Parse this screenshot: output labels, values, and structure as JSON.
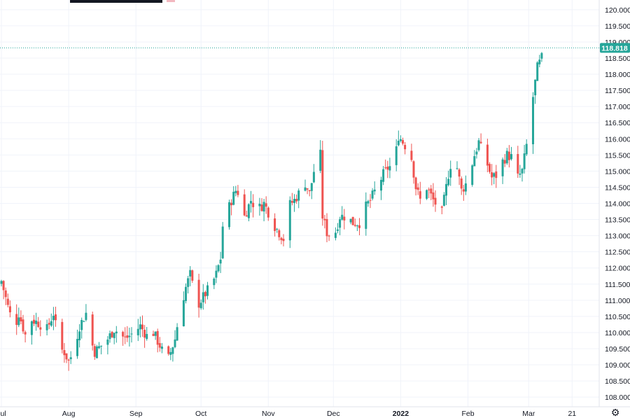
{
  "chart_data": {
    "type": "candlestick",
    "y_axis": {
      "min": 107.7,
      "max": 120.3,
      "ticks": [
        "108.000",
        "108.500",
        "109.000",
        "109.500",
        "110.000",
        "110.500",
        "111.000",
        "111.500",
        "112.000",
        "112.500",
        "113.000",
        "113.500",
        "114.000",
        "114.500",
        "115.000",
        "115.500",
        "116.000",
        "116.500",
        "117.000",
        "117.500",
        "118.000",
        "118.500",
        "119.000",
        "119.500",
        "120.000"
      ],
      "position": "right"
    },
    "x_axis": {
      "labels": [
        {
          "text": "Jul",
          "day": 0
        },
        {
          "text": "Aug",
          "day": 31
        },
        {
          "text": "Sep",
          "day": 62
        },
        {
          "text": "Oct",
          "day": 92
        },
        {
          "text": "Nov",
          "day": 123
        },
        {
          "text": "Dec",
          "day": 153
        },
        {
          "text": "2022",
          "day": 184,
          "bold": true
        },
        {
          "text": "Feb",
          "day": 215
        },
        {
          "text": "Mar",
          "day": 243
        },
        {
          "text": "21",
          "day": 263
        }
      ]
    },
    "last_price": "118.818",
    "last_value": 118.818,
    "colors": {
      "up": "#26a69a",
      "down": "#ef5350",
      "grid": "#f0f3fa",
      "price_label": "#26a69a"
    },
    "grid": true,
    "keyframes": [
      [
        0,
        111.6
      ],
      [
        3,
        110.8
      ],
      [
        6,
        110.1
      ],
      [
        8,
        110.6
      ],
      [
        12,
        109.7
      ],
      [
        14,
        110.4
      ],
      [
        17,
        110.3
      ],
      [
        21,
        110.1
      ],
      [
        24,
        110.6
      ],
      [
        27,
        109.5
      ],
      [
        29,
        109.4
      ],
      [
        31,
        109.1
      ],
      [
        33,
        109.4
      ],
      [
        36,
        110.2
      ],
      [
        39,
        110.6
      ],
      [
        41,
        109.8
      ],
      [
        43,
        109.4
      ],
      [
        46,
        109.6
      ],
      [
        49,
        109.8
      ],
      [
        52,
        110.1
      ],
      [
        54,
        110.0
      ],
      [
        57,
        109.8
      ],
      [
        61,
        110.0
      ],
      [
        64,
        110.2
      ],
      [
        67,
        109.9
      ],
      [
        70,
        110.0
      ],
      [
        73,
        109.6
      ],
      [
        75,
        109.3
      ],
      [
        77,
        109.2
      ],
      [
        80,
        109.8
      ],
      [
        82,
        110.6
      ],
      [
        85,
        111.4
      ],
      [
        87,
        111.8
      ],
      [
        89,
        111.2
      ],
      [
        91,
        110.9
      ],
      [
        94,
        111.2
      ],
      [
        97,
        111.5
      ],
      [
        99,
        111.8
      ],
      [
        101,
        112.3
      ],
      [
        102,
        113.3
      ],
      [
        104,
        113.7
      ],
      [
        106,
        114.1
      ],
      [
        108,
        114.4
      ],
      [
        110,
        114.3
      ],
      [
        112,
        113.6
      ],
      [
        115,
        114.1
      ],
      [
        118,
        113.8
      ],
      [
        121,
        114.0
      ],
      [
        124,
        113.6
      ],
      [
        126,
        113.3
      ],
      [
        128,
        113.1
      ],
      [
        130,
        112.9
      ],
      [
        132,
        113.9
      ],
      [
        135,
        114.1
      ],
      [
        137,
        114.3
      ],
      [
        139,
        114.8
      ],
      [
        142,
        114.3
      ],
      [
        144,
        115.0
      ],
      [
        146,
        115.5
      ],
      [
        147,
        115.5
      ],
      [
        148,
        113.6
      ],
      [
        150,
        113.1
      ],
      [
        153,
        112.9
      ],
      [
        156,
        113.6
      ],
      [
        159,
        113.6
      ],
      [
        162,
        113.4
      ],
      [
        165,
        113.4
      ],
      [
        168,
        113.9
      ],
      [
        170,
        114.1
      ],
      [
        173,
        114.5
      ],
      [
        176,
        114.9
      ],
      [
        178,
        115.1
      ],
      [
        181,
        115.2
      ],
      [
        183,
        116.1
      ],
      [
        186,
        115.8
      ],
      [
        189,
        115.4
      ],
      [
        191,
        114.5
      ],
      [
        193,
        114.1
      ],
      [
        196,
        114.5
      ],
      [
        199,
        114.1
      ],
      [
        201,
        113.9
      ],
      [
        203,
        113.7
      ],
      [
        206,
        114.9
      ],
      [
        208,
        115.5
      ],
      [
        210,
        115.1
      ],
      [
        212,
        114.4
      ],
      [
        214,
        114.6
      ],
      [
        216,
        115.0
      ],
      [
        218,
        115.5
      ],
      [
        220,
        115.9
      ],
      [
        222,
        115.5
      ],
      [
        224,
        115.2
      ],
      [
        226,
        114.8
      ],
      [
        229,
        114.9
      ],
      [
        231,
        115.3
      ],
      [
        233,
        115.5
      ],
      [
        236,
        115.4
      ],
      [
        238,
        114.8
      ],
      [
        240,
        115.0
      ],
      [
        242,
        115.8
      ],
      [
        243,
        116.2
      ],
      [
        245,
        117.3
      ],
      [
        247,
        118.2
      ],
      [
        249,
        118.5
      ],
      [
        251,
        118.8
      ]
    ]
  }
}
